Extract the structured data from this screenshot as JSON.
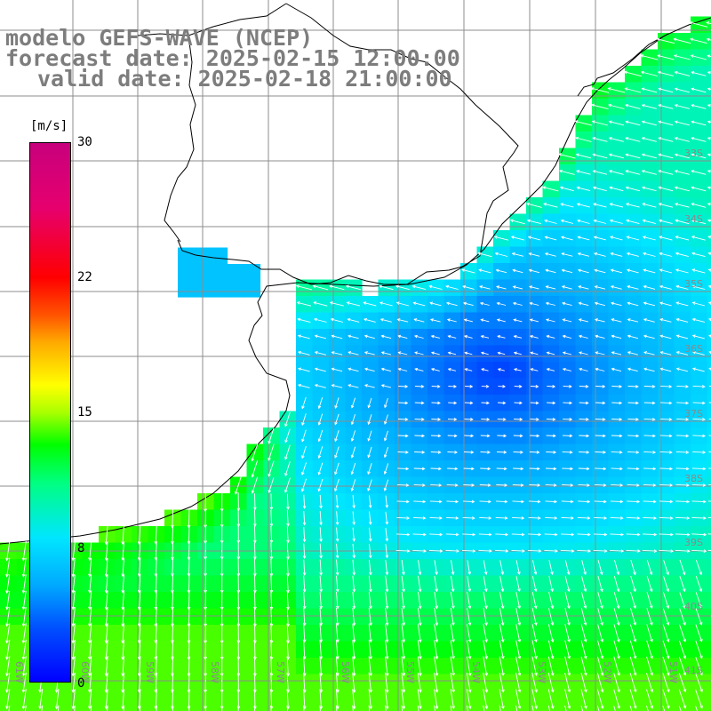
{
  "header": {
    "line1": "modelo GEFS-WAVE (NCEP)",
    "line2": "forecast date: 2025-02-15 12:00:00",
    "line3": "valid date: 2025-02-18 21:00:00"
  },
  "colorbar": {
    "unit": "[m/s]",
    "min": 0,
    "max": 30,
    "ticks": [
      "30",
      "22",
      "15",
      "8",
      "0"
    ],
    "tick_values": [
      30,
      22,
      15,
      8,
      0
    ],
    "colors": [
      "#0000ff",
      "#00aaff",
      "#00e6ff",
      "#00ff00",
      "#ffff00",
      "#ff0000",
      "#c8007d"
    ]
  },
  "map": {
    "land_color": "#ffffff",
    "grid_color": "#8c8c8c",
    "lat_labels": [
      "33S",
      "34S",
      "35S",
      "36S",
      "37S",
      "38S",
      "39S",
      "40S",
      "41S"
    ],
    "lon_labels": [
      "61W",
      "60W",
      "59W",
      "58W",
      "57W",
      "56W",
      "55W",
      "54W",
      "53W",
      "52W",
      "51W"
    ]
  }
}
